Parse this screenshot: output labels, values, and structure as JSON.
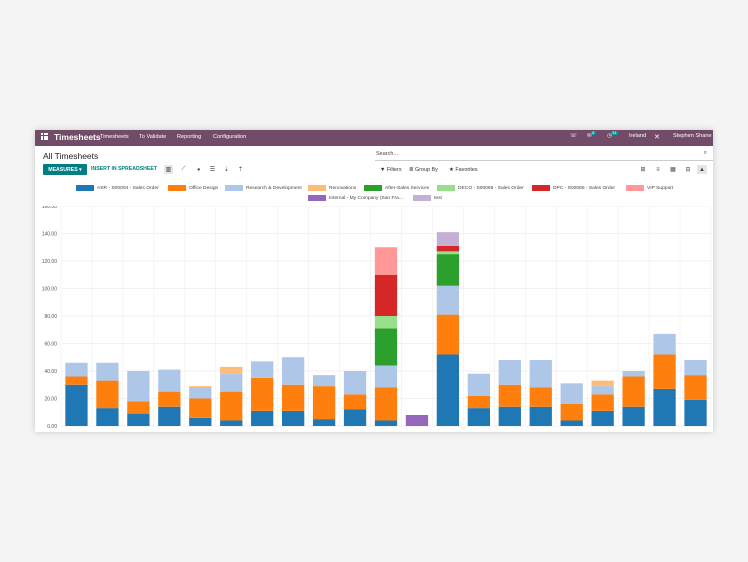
{
  "navbar": {
    "app_title": "Timesheets",
    "menu": [
      "Timesheets",
      "To Validate",
      "Reporting",
      "Configuration"
    ],
    "chat_badge": "8",
    "activity_badge": "24",
    "company": "Ireland",
    "user": "Stephen Shane"
  },
  "control": {
    "breadcrumb": "All Timesheets",
    "search_placeholder": "Search...",
    "measures_label": "MEASURES ▾",
    "insert_label": "INSERT IN SPREADSHEET",
    "filters_label": "Filters",
    "groupby_label": "Group By",
    "favorites_label": "Favorites"
  },
  "colors": {
    "brand": "#714b67",
    "primary": "#017e84"
  },
  "chart_data": {
    "type": "bar",
    "stacked": true,
    "ylim": [
      0,
      160
    ],
    "yticks": [
      "0.00",
      "20.00",
      "40.00",
      "60.00",
      "80.00",
      "100.00",
      "120.00",
      "140.00",
      "160.00"
    ],
    "grid": true,
    "legend_position": "top",
    "categories": [
      "",
      "",
      "",
      "",
      "",
      "",
      "",
      "",
      "",
      "",
      "",
      "",
      "",
      "",
      "",
      "",
      "",
      "",
      "",
      "",
      ""
    ],
    "series": [
      {
        "name": "ASR - S00004 - Sales Order",
        "color": "#1f77b4",
        "values": [
          30,
          13,
          9,
          14,
          6,
          4,
          11,
          11,
          5,
          12,
          4,
          0,
          52,
          13,
          14,
          14,
          4,
          11,
          14,
          27,
          19
        ]
      },
      {
        "name": "Office Design",
        "color": "#ff7f0e",
        "values": [
          6,
          20,
          9,
          11,
          14,
          21,
          24,
          19,
          24,
          11,
          24,
          0,
          29,
          9,
          16,
          14,
          12,
          12,
          22,
          25,
          18
        ]
      },
      {
        "name": "Research & Development",
        "color": "#aec7e8",
        "values": [
          10,
          13,
          22,
          16,
          8,
          13,
          12,
          20,
          8,
          17,
          16,
          0,
          21,
          16,
          18,
          20,
          15,
          6,
          4,
          15,
          11
        ]
      },
      {
        "name": "Renovations",
        "color": "#ffbb78",
        "values": [
          0,
          0,
          0,
          0,
          1,
          5,
          0,
          0,
          0,
          0,
          0,
          0,
          0,
          0,
          0,
          0,
          0,
          4,
          0,
          0,
          0
        ]
      },
      {
        "name": "After-Sales Services",
        "color": "#2ca02c",
        "values": [
          0,
          0,
          0,
          0,
          0,
          0,
          0,
          0,
          0,
          0,
          27,
          0,
          23,
          0,
          0,
          0,
          0,
          0,
          0,
          0,
          0
        ]
      },
      {
        "name": "DECO - S00066 - Sales Order",
        "color": "#98df8a",
        "values": [
          0,
          0,
          0,
          0,
          0,
          0,
          0,
          0,
          0,
          0,
          9,
          0,
          2,
          0,
          0,
          0,
          0,
          0,
          0,
          0,
          0
        ]
      },
      {
        "name": "DPC - S00065 - Sales Order",
        "color": "#d62728",
        "values": [
          0,
          0,
          0,
          0,
          0,
          0,
          0,
          0,
          0,
          0,
          30,
          0,
          4,
          0,
          0,
          0,
          0,
          0,
          0,
          0,
          0
        ]
      },
      {
        "name": "VIP Support",
        "color": "#ff9896",
        "values": [
          0,
          0,
          0,
          0,
          0,
          0,
          0,
          0,
          0,
          0,
          20,
          0,
          0,
          0,
          0,
          0,
          0,
          0,
          0,
          0,
          0
        ]
      },
      {
        "name": "Internal - My Company (San Fra...",
        "color": "#9467bd",
        "values": [
          0,
          0,
          0,
          0,
          0,
          0,
          0,
          0,
          0,
          0,
          0,
          8,
          0,
          0,
          0,
          0,
          0,
          0,
          0,
          0,
          0
        ]
      },
      {
        "name": "test",
        "color": "#c5b0d5",
        "values": [
          0,
          0,
          0,
          0,
          0,
          0,
          0,
          0,
          0,
          0,
          0,
          0,
          10,
          0,
          0,
          0,
          0,
          0,
          0,
          0,
          0
        ]
      }
    ]
  }
}
